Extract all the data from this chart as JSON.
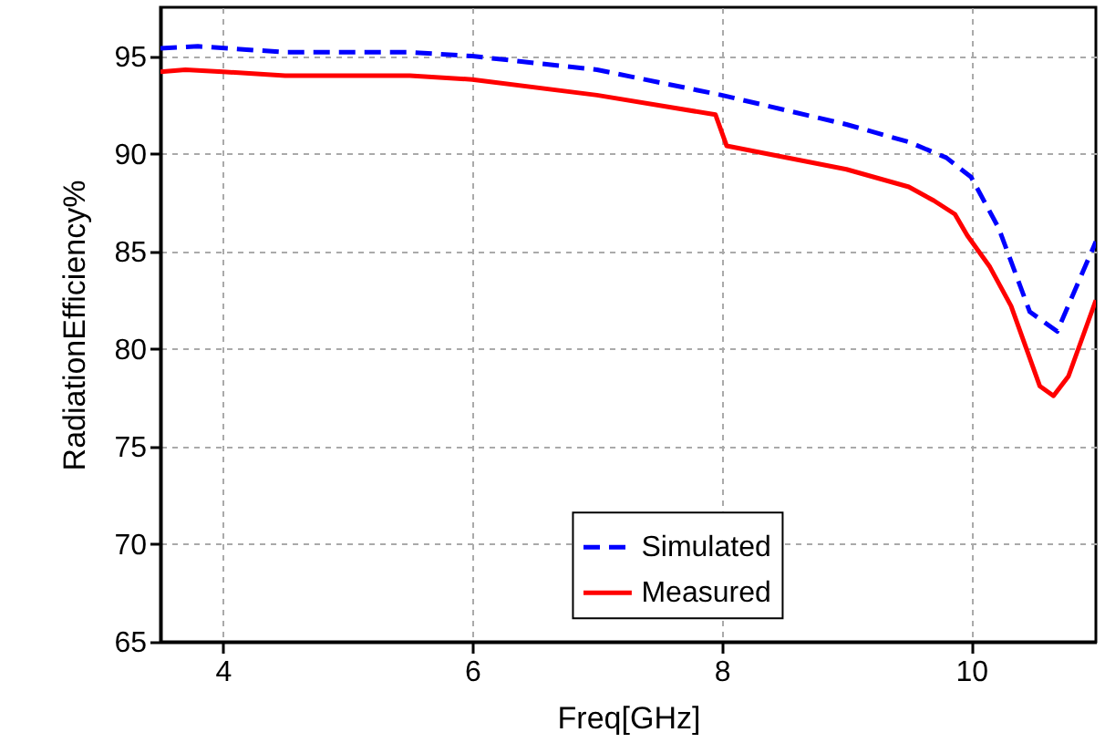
{
  "chart_data": {
    "type": "line",
    "xlabel": "Freq[GHz]",
    "ylabel": "RadiationEfficiency%",
    "xlim": [
      3.5,
      11
    ],
    "xticks": [
      4,
      6,
      8,
      10
    ],
    "ylim": [
      65,
      97.5
    ],
    "yticks": [
      65,
      70,
      75,
      80,
      85,
      90,
      95
    ],
    "grid": true,
    "legend": "bottom",
    "marker": "none",
    "series": [
      {
        "name": "Simulated",
        "color": "#0000ff",
        "line_style": "dashed",
        "x": [
          3.5,
          3.8,
          4.5,
          5.5,
          6,
          7,
          8,
          9,
          9.5,
          9.8,
          10,
          10.22,
          10.47,
          10.69,
          11
        ],
        "values": [
          95.4,
          95.5,
          95.2,
          95.2,
          95.0,
          94.3,
          93.0,
          91.5,
          90.6,
          89.8,
          88.8,
          86.2,
          81.9,
          80.9,
          85.5
        ]
      },
      {
        "name": "Measured",
        "color": "#ff0000",
        "line_style": "solid",
        "x": [
          3.5,
          3.7,
          4,
          4.5,
          5.5,
          6,
          7,
          7.95,
          8.04,
          9,
          9.5,
          9.7,
          9.87,
          9.97,
          10.15,
          10.32,
          10.55,
          10.66,
          10.78,
          11
        ],
        "values": [
          94.2,
          94.3,
          94.2,
          94.0,
          94.0,
          93.8,
          93.0,
          92.0,
          90.4,
          89.2,
          88.3,
          87.6,
          86.9,
          85.8,
          84.2,
          82.2,
          78.1,
          77.6,
          78.6,
          82.5
        ]
      }
    ]
  }
}
